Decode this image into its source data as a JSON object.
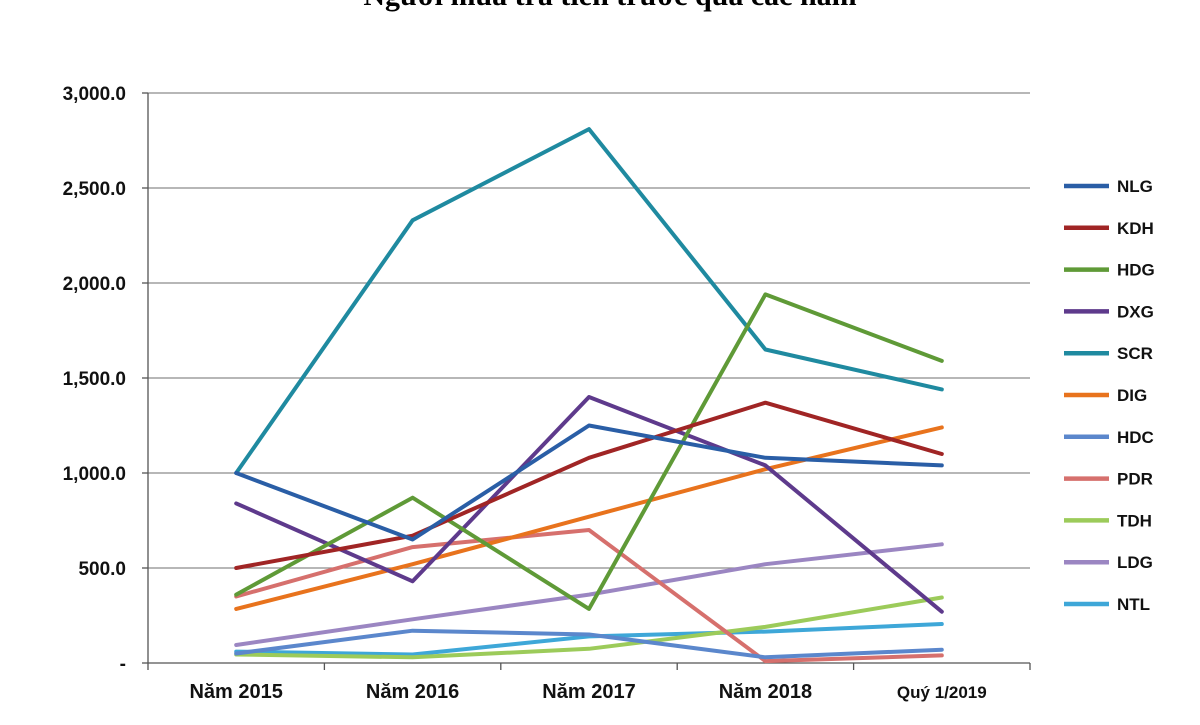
{
  "chart_data": {
    "type": "line",
    "title": "Người mua trả tiền trước qua các năm",
    "categories": [
      "Năm 2015",
      "Năm 2016",
      "Năm 2017",
      "Năm 2018",
      "Quý 1/2019"
    ],
    "y_tick_labels": [
      "-",
      "500.0",
      "1,000.0",
      "1,500.0",
      "2,000.0",
      "2,500.0",
      "3,000.0"
    ],
    "y_ticks": [
      0,
      500,
      1000,
      1500,
      2000,
      2500,
      3000
    ],
    "ylim": [
      0,
      3000
    ],
    "grid": true,
    "legend_position": "right",
    "series": [
      {
        "name": "NLG",
        "color": "#2a5ea6",
        "values": [
          1000,
          650,
          1250,
          1080,
          1040
        ]
      },
      {
        "name": "KDH",
        "color": "#a02525",
        "values": [
          500,
          670,
          1080,
          1370,
          1100
        ]
      },
      {
        "name": "HDG",
        "color": "#5f9a37",
        "values": [
          360,
          870,
          285,
          1940,
          1590
        ]
      },
      {
        "name": "DXG",
        "color": "#5e3a8c",
        "values": [
          840,
          430,
          1400,
          1040,
          270
        ]
      },
      {
        "name": "SCR",
        "color": "#1f8aa0",
        "values": [
          1000,
          2330,
          2810,
          1650,
          1440
        ]
      },
      {
        "name": "DIG",
        "color": "#e8731d",
        "values": [
          285,
          520,
          770,
          1020,
          1240
        ]
      },
      {
        "name": "HDC",
        "color": "#5b87cc",
        "values": [
          50,
          170,
          150,
          30,
          70
        ]
      },
      {
        "name": "PDR",
        "color": "#d6706d",
        "values": [
          350,
          610,
          700,
          10,
          40
        ]
      },
      {
        "name": "TDH",
        "color": "#9ccb5a",
        "values": [
          45,
          30,
          75,
          190,
          345
        ]
      },
      {
        "name": "LDG",
        "color": "#9b86c2",
        "values": [
          95,
          230,
          360,
          520,
          625
        ]
      },
      {
        "name": "NTL",
        "color": "#3ea7d8",
        "values": [
          60,
          45,
          140,
          165,
          205
        ]
      }
    ]
  }
}
